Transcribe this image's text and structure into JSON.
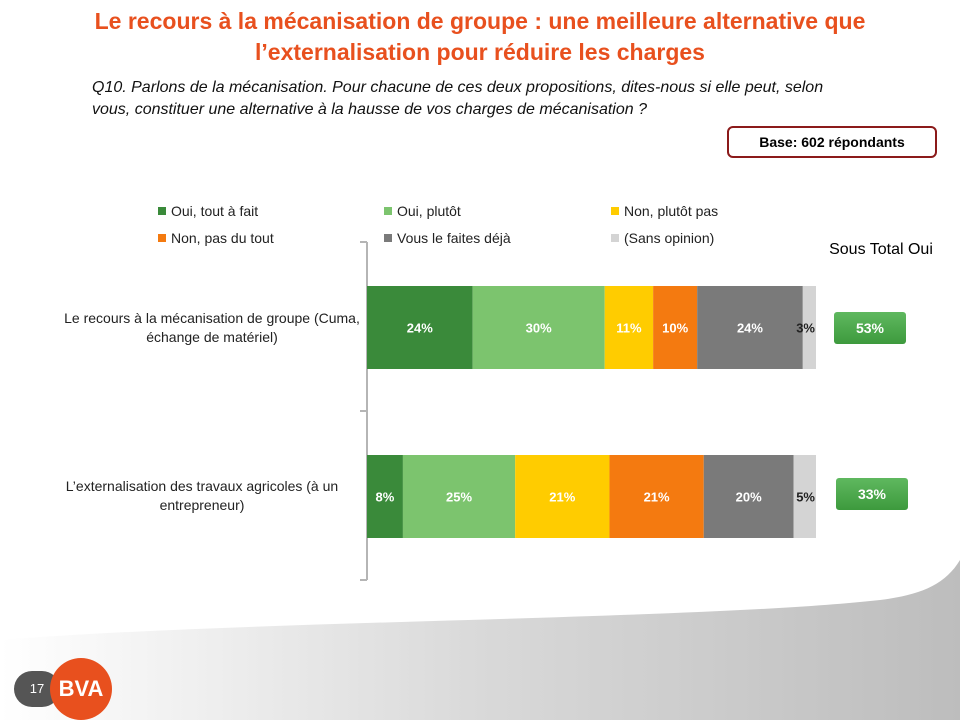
{
  "title": "Le recours à la mécanisation de groupe : une meilleure alternative que l’externalisation pour réduire les charges",
  "question": "Q10. Parlons de la mécanisation. Pour chacune de ces deux propositions, dites-nous si elle peut, selon vous, constituer une alternative à la hausse de vos charges de mécanisation ?",
  "base_label": "Base: 602 répondants",
  "subtotal_header": "Sous Total Oui",
  "page_number": "17",
  "logo_text": "BVA",
  "colors": {
    "title": "#e8501e",
    "badge": "#4caf50"
  },
  "chart_data": {
    "type": "bar",
    "orientation": "horizontal-stacked-100",
    "categories": [
      "Le recours à la mécanisation de groupe (Cuma, échange de matériel)",
      "L’externalisation des travaux agricoles (à un entrepreneur)"
    ],
    "series": [
      {
        "name": "Oui, tout à fait",
        "color": "#3a8a3a",
        "values": [
          24,
          8
        ],
        "labels": [
          "24%",
          "8%"
        ]
      },
      {
        "name": "Oui, plutôt",
        "color": "#7cc46e",
        "values": [
          30,
          25
        ],
        "labels": [
          "30%",
          "25%"
        ]
      },
      {
        "name": "Non, plutôt pas",
        "color": "#ffcc00",
        "values": [
          11,
          21
        ],
        "labels": [
          "11%",
          "21%"
        ]
      },
      {
        "name": "Non, pas du tout",
        "color": "#f47a10",
        "values": [
          10,
          21
        ],
        "labels": [
          "10%",
          "21%"
        ]
      },
      {
        "name": "Vous le faites déjà",
        "color": "#7a7a7a",
        "values": [
          24,
          20
        ],
        "labels": [
          "24%",
          "20%"
        ]
      },
      {
        "name": "(Sans opinion)",
        "color": "#d4d4d4",
        "values": [
          3,
          5
        ],
        "labels": [
          "3%",
          "5%"
        ]
      }
    ],
    "subtotals": [
      "53%",
      "33%"
    ],
    "legend_position": "top"
  }
}
